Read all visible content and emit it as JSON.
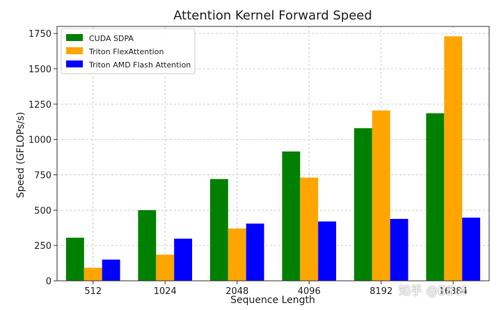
{
  "watermark": "知乎 @BBuf",
  "chart_data": {
    "type": "bar",
    "title": "Attention Kernel Forward Speed",
    "xlabel": "Sequence Length",
    "ylabel": "Speed (GFLOPs/s)",
    "categories": [
      "512",
      "1024",
      "2048",
      "4096",
      "8192",
      "16384"
    ],
    "ylim": [
      0,
      1800
    ],
    "yticks": [
      0,
      250,
      500,
      750,
      1000,
      1250,
      1500,
      1750
    ],
    "grid": true,
    "legend_position": "top-left",
    "series": [
      {
        "name": "CUDA SDPA",
        "color": "#008000",
        "values": [
          305,
          500,
          720,
          915,
          1080,
          1185
        ]
      },
      {
        "name": "Triton FlexAttention",
        "color": "#FFA500",
        "values": [
          92,
          185,
          370,
          730,
          1205,
          1730
        ]
      },
      {
        "name": "Triton AMD Flash Attention",
        "color": "#0000FF",
        "values": [
          150,
          298,
          405,
          420,
          438,
          447
        ]
      }
    ]
  }
}
